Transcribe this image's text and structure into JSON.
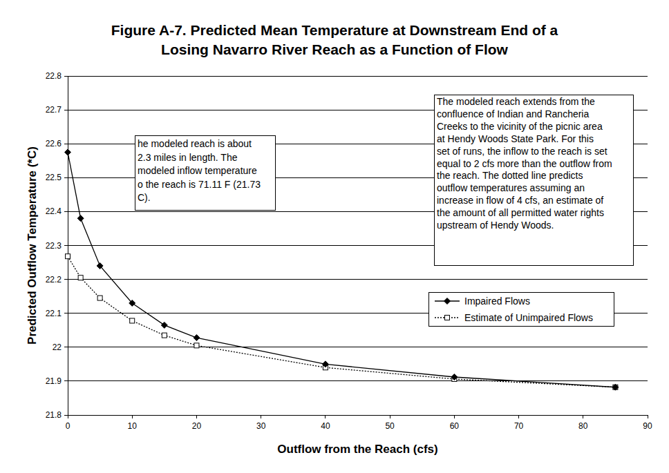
{
  "chart_data": {
    "type": "line",
    "title": [
      "Figure A-7.  Predicted Mean Temperature at Downstream End of a",
      "Losing Navarro River Reach as a Function of Flow"
    ],
    "x_label": "Outflow from the Reach (cfs)",
    "y_label": "Predicted Outflow Temperature (*C)",
    "x": [
      0,
      2,
      5,
      10,
      15,
      20,
      40,
      60,
      85
    ],
    "series": [
      {
        "name": "Impaired Flows",
        "color": "#000000",
        "marker": "diamond",
        "line_style": "solid",
        "values": [
          22.575,
          22.38,
          22.24,
          22.13,
          22.065,
          22.028,
          21.95,
          21.912,
          21.882
        ]
      },
      {
        "name": "Estimate of Unimpaired Flows",
        "color": "#000000",
        "marker": "square",
        "line_style": "dotted",
        "values": [
          22.268,
          22.205,
          22.145,
          22.078,
          22.035,
          22.005,
          21.94,
          21.906,
          21.882
        ]
      }
    ],
    "xlim": [
      0,
      90
    ],
    "xticks": [
      0,
      10,
      20,
      30,
      40,
      50,
      60,
      70,
      80,
      90
    ],
    "ylim": [
      21.8,
      22.8
    ],
    "yticks": [
      21.8,
      21.9,
      22,
      22.1,
      22.2,
      22.3,
      22.4,
      22.5,
      22.6,
      22.7,
      22.8
    ],
    "grid": true,
    "legend": "right",
    "annotations": [
      {
        "lines": [
          "he modeled reach is about",
          "2.3 miles in length.  The",
          "modeled inflow temperature",
          "o the reach is 71.11 F (21.73",
          "C)."
        ]
      },
      {
        "lines": [
          "The modeled reach extends from the",
          "confluence of Indian and Rancheria",
          "Creeks to the vicinity of the picnic area",
          "at Hendy Woods State Park.  For this",
          "set of runs, the inflow to the reach is set",
          "equal to 2 cfs more than the outflow from",
          "the reach.  The dotted line predicts",
          "outflow temperatures assuming an",
          "increase in flow of 4 cfs, an estimate of",
          "the amount of all permitted water rights",
          "upstream of Hendy Woods."
        ]
      }
    ]
  }
}
